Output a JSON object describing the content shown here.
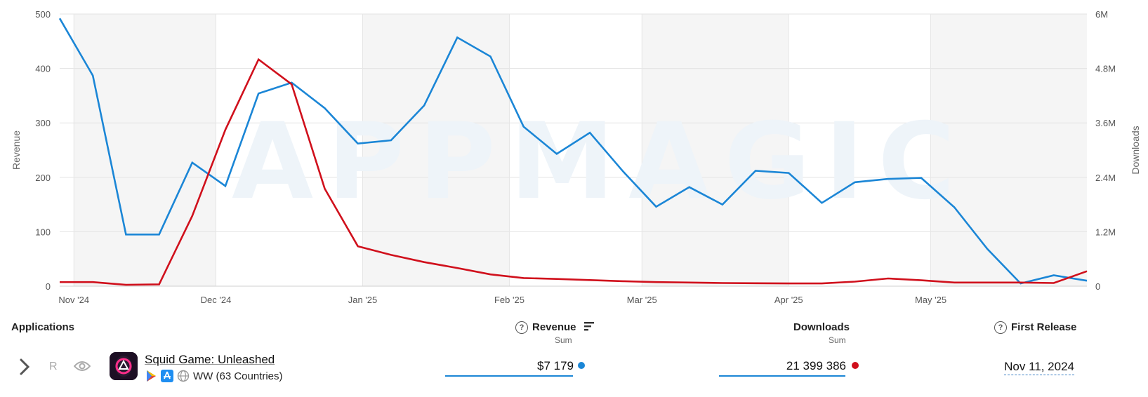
{
  "chart_data": {
    "type": "line",
    "watermark": "APPMAGIC",
    "x_labels": [
      "Nov '24",
      "Dec '24",
      "Jan '25",
      "Feb '25",
      "Mar '25",
      "Apr '25",
      "May '25"
    ],
    "ylabel_left": "Revenue",
    "ylabel_right": "Downloads",
    "ylim_left": [
      0,
      500
    ],
    "ylim_right": [
      0,
      6000000
    ],
    "yticks_left": [
      "0",
      "100",
      "200",
      "300",
      "400",
      "500"
    ],
    "yticks_right": [
      "0",
      "1.2M",
      "2.4M",
      "3.6M",
      "4.8M",
      "6M"
    ],
    "grid": true,
    "x_start": "2024-10-29",
    "series": [
      {
        "axis": "left",
        "color": "#1b86d6",
        "dates": [
          "2024-10-29",
          "2024-11-05",
          "2024-11-12",
          "2024-11-19",
          "2024-11-26",
          "2024-12-03",
          "2024-12-10",
          "2024-12-17",
          "2024-12-24",
          "2024-12-31",
          "2025-01-07",
          "2025-01-14",
          "2025-01-21",
          "2025-01-28",
          "2025-02-04",
          "2025-02-11",
          "2025-02-18",
          "2025-02-25",
          "2025-03-04",
          "2025-03-11",
          "2025-03-18",
          "2025-03-25",
          "2025-04-01",
          "2025-04-08",
          "2025-04-15",
          "2025-04-22",
          "2025-04-29",
          "2025-05-06",
          "2025-05-13",
          "2025-05-20",
          "2025-05-27",
          "2025-06-03"
        ],
        "values": [
          492,
          387,
          95,
          95,
          227,
          184,
          354,
          374,
          327,
          262,
          268,
          332,
          457,
          422,
          293,
          243,
          282,
          211,
          146,
          182,
          150,
          212,
          208,
          153,
          191,
          197,
          199,
          145,
          68,
          5,
          20,
          10
        ]
      },
      {
        "axis": "right",
        "color": "#d0101c",
        "dates": [
          "2024-10-29",
          "2024-11-05",
          "2024-11-12",
          "2024-11-19",
          "2024-11-26",
          "2024-12-03",
          "2024-12-10",
          "2024-12-17",
          "2024-12-24",
          "2024-12-31",
          "2025-01-07",
          "2025-01-14",
          "2025-01-21",
          "2025-01-28",
          "2025-02-04",
          "2025-02-11",
          "2025-02-18",
          "2025-02-25",
          "2025-03-04",
          "2025-03-11",
          "2025-03-18",
          "2025-03-25",
          "2025-04-01",
          "2025-04-08",
          "2025-04-15",
          "2025-04-22",
          "2025-04-29",
          "2025-05-06",
          "2025-05-13",
          "2025-05-20",
          "2025-05-27",
          "2025-06-03"
        ],
        "values": [
          90000,
          90000,
          30000,
          40000,
          1550000,
          3450000,
          5000000,
          4450000,
          2150000,
          880000,
          690000,
          530000,
          400000,
          260000,
          180000,
          160000,
          135000,
          110000,
          90000,
          80000,
          70000,
          65000,
          60000,
          60000,
          100000,
          170000,
          130000,
          80000,
          80000,
          80000,
          70000,
          330000
        ]
      }
    ]
  },
  "table": {
    "headers": {
      "applications": "Applications",
      "revenue": "Revenue",
      "revenue_sub": "Sum",
      "downloads": "Downloads",
      "downloads_sub": "Sum",
      "first_release": "First Release"
    },
    "rows": [
      {
        "rank_marker": "R",
        "name": "Squid Game: Unleashed",
        "region": "WW (63 Countries)",
        "revenue": "$7 179",
        "revenue_color": "#1b86d6",
        "downloads": "21 399 386",
        "downloads_color": "#d0101c",
        "first_release": "Nov 11, 2024"
      }
    ]
  },
  "icons": {
    "expand": "chevron-right-icon",
    "watch": "eye-icon",
    "help": "question-circle-icon",
    "sort": "sort-descending-icon",
    "google_play": "google-play-icon",
    "app_store": "app-store-icon",
    "web": "globe-icon"
  }
}
